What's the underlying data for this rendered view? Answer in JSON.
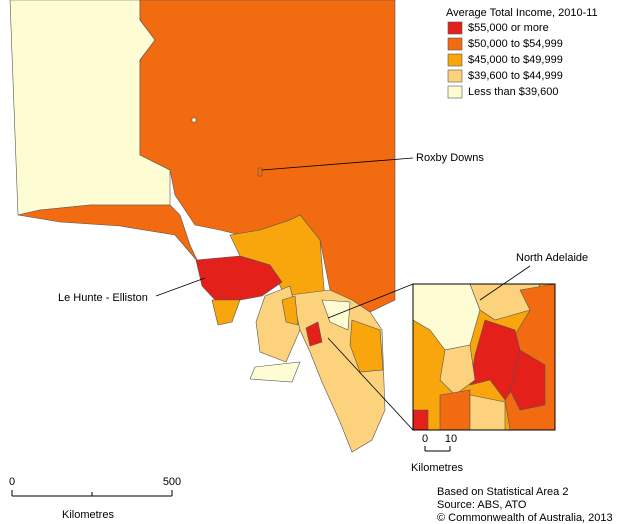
{
  "legend": {
    "title": "Average Total Income, 2010-11",
    "items": [
      {
        "label": "$55,000  or more",
        "color": "#e4201b"
      },
      {
        "label": "$50,000  to $54,999",
        "color": "#f36b10"
      },
      {
        "label": "$45,000  to $49,999",
        "color": "#f9a60d"
      },
      {
        "label": "$39,600  to $44,999",
        "color": "#fdd27c"
      },
      {
        "label": "Less than $39,600",
        "color": "#fefcd3"
      }
    ]
  },
  "places": [
    "Roxby Downs",
    "North Adelaide",
    "Le Hunte - Elliston"
  ],
  "scale_bar": {
    "ticks": [
      "0",
      "500"
    ],
    "unit": "Kilometres"
  },
  "inset_scale_bar": {
    "ticks": [
      "0",
      "10"
    ],
    "unit": "Kilometres"
  },
  "notes": [
    "Based on Statistical Area 2",
    "Source: ABS, ATO",
    "© Commonwealth of Australia, 2013"
  ]
}
